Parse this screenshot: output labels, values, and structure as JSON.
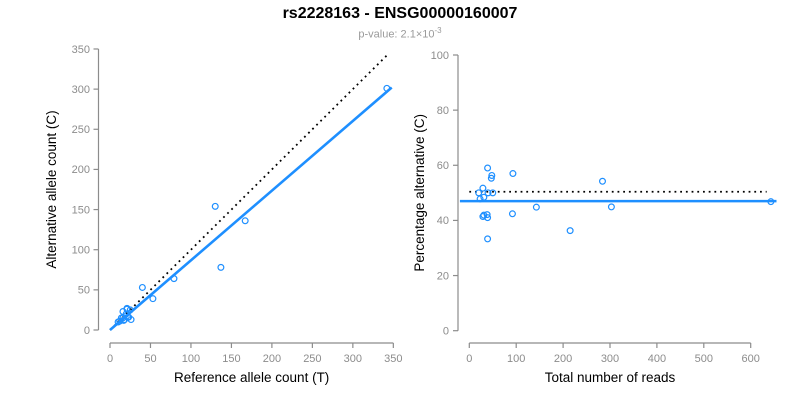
{
  "header": {
    "title": "rs2228163 - ENSG00000160007",
    "pvalue_base": "p-value: 2.1×10",
    "pvalue_exponent": "-3"
  },
  "colors": {
    "accent_blue": "#1E8FFF",
    "dotted_black": "#000000",
    "axis_gray": "#8C8C8C",
    "tick_label_gray": "#8C8C8C",
    "axis_title_black": "#000000",
    "subtitle_gray": "#9A9A9A",
    "background": "#FFFFFF"
  },
  "chart_data": [
    {
      "type": "scatter",
      "panel": "left",
      "xlabel": "Reference allele count (T)",
      "ylabel": "Alternative allele count (C)",
      "xlim": [
        0,
        350
      ],
      "ylim": [
        0,
        350
      ],
      "xticks": [
        0,
        50,
        100,
        150,
        200,
        250,
        300,
        350
      ],
      "yticks": [
        0,
        50,
        100,
        150,
        200,
        250,
        300,
        350
      ],
      "grid": false,
      "points": [
        [
          10,
          10
        ],
        [
          12,
          11
        ],
        [
          14,
          15
        ],
        [
          16,
          15
        ],
        [
          17,
          12
        ],
        [
          16,
          23
        ],
        [
          18,
          13
        ],
        [
          20,
          20
        ],
        [
          21,
          26
        ],
        [
          21,
          27
        ],
        [
          22,
          16
        ],
        [
          23,
          16
        ],
        [
          25,
          25
        ],
        [
          26,
          13
        ],
        [
          40,
          53
        ],
        [
          53,
          39
        ],
        [
          79,
          64
        ],
        [
          130,
          154
        ],
        [
          137,
          78
        ],
        [
          167,
          136
        ],
        [
          342,
          301
        ]
      ],
      "lines": [
        {
          "name": "identity-line",
          "style": "dotted",
          "color": "#000000",
          "x1": 0,
          "y1": 0,
          "x2": 343,
          "y2": 343
        },
        {
          "name": "fit-line",
          "style": "solid",
          "color": "#1E8FFF",
          "x1": 0,
          "y1": 0,
          "x2": 348,
          "y2": 302
        }
      ]
    },
    {
      "type": "scatter",
      "panel": "right",
      "xlabel": "Total number of reads",
      "ylabel": "Percentage alternative (C)",
      "xlim": [
        0,
        600
      ],
      "ylim": [
        0,
        100
      ],
      "xticks": [
        0,
        100,
        200,
        300,
        400,
        500,
        600
      ],
      "yticks": [
        0,
        20,
        40,
        60,
        80,
        100
      ],
      "grid": false,
      "points": [
        [
          20,
          50
        ],
        [
          23,
          47.8
        ],
        [
          29,
          51.7
        ],
        [
          31,
          48.4
        ],
        [
          29,
          41.4
        ],
        [
          39,
          59
        ],
        [
          31,
          41.9
        ],
        [
          40,
          50
        ],
        [
          47,
          55.3
        ],
        [
          48,
          56.3
        ],
        [
          38,
          42.1
        ],
        [
          39,
          41
        ],
        [
          50,
          50
        ],
        [
          39,
          33.3
        ],
        [
          93,
          57
        ],
        [
          92,
          42.4
        ],
        [
          143,
          44.8
        ],
        [
          284,
          54.2
        ],
        [
          215,
          36.3
        ],
        [
          303,
          44.9
        ],
        [
          643,
          46.8
        ]
      ],
      "lines": [
        {
          "name": "expected-line",
          "style": "dotted",
          "color": "#000000",
          "x1": 0,
          "y1": 50.4,
          "x2": 634,
          "y2": 50.4
        },
        {
          "name": "fit-line",
          "style": "solid",
          "color": "#1E8FFF",
          "x1": -20,
          "y1": 47,
          "x2": 655,
          "y2": 47
        }
      ]
    }
  ]
}
